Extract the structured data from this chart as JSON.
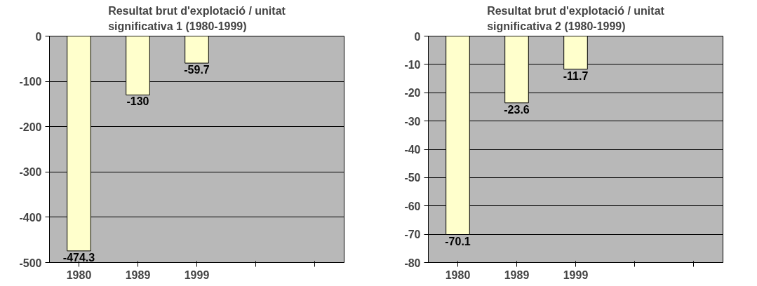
{
  "chart_data": [
    {
      "type": "bar",
      "title": "Resultat brut d'explotació / unitat\nsignificativa 1 (1980-1999)",
      "categories": [
        "1980",
        "1989",
        "1999",
        null,
        null
      ],
      "values": [
        -474.3,
        -130,
        -59.7,
        null,
        null
      ],
      "color": "#ffffcc",
      "ylim": [
        -500,
        0
      ],
      "yticks": [
        -500,
        -400,
        -300,
        -200,
        -100,
        0
      ],
      "grid": "y",
      "data_labels": true
    },
    {
      "type": "bar",
      "title": "Resultat brut d'explotació / unitat\nsignificativa 2 (1980-1999)",
      "categories": [
        "1980",
        "1989",
        "1999",
        null,
        null
      ],
      "values": [
        -70.1,
        -23.6,
        -11.7,
        null,
        null
      ],
      "color": "#ffffcc",
      "ylim": [
        -80,
        0
      ],
      "yticks": [
        -80,
        -70,
        -60,
        -50,
        -40,
        -30,
        -20,
        -10,
        0
      ],
      "grid": "y",
      "data_labels": true
    }
  ]
}
